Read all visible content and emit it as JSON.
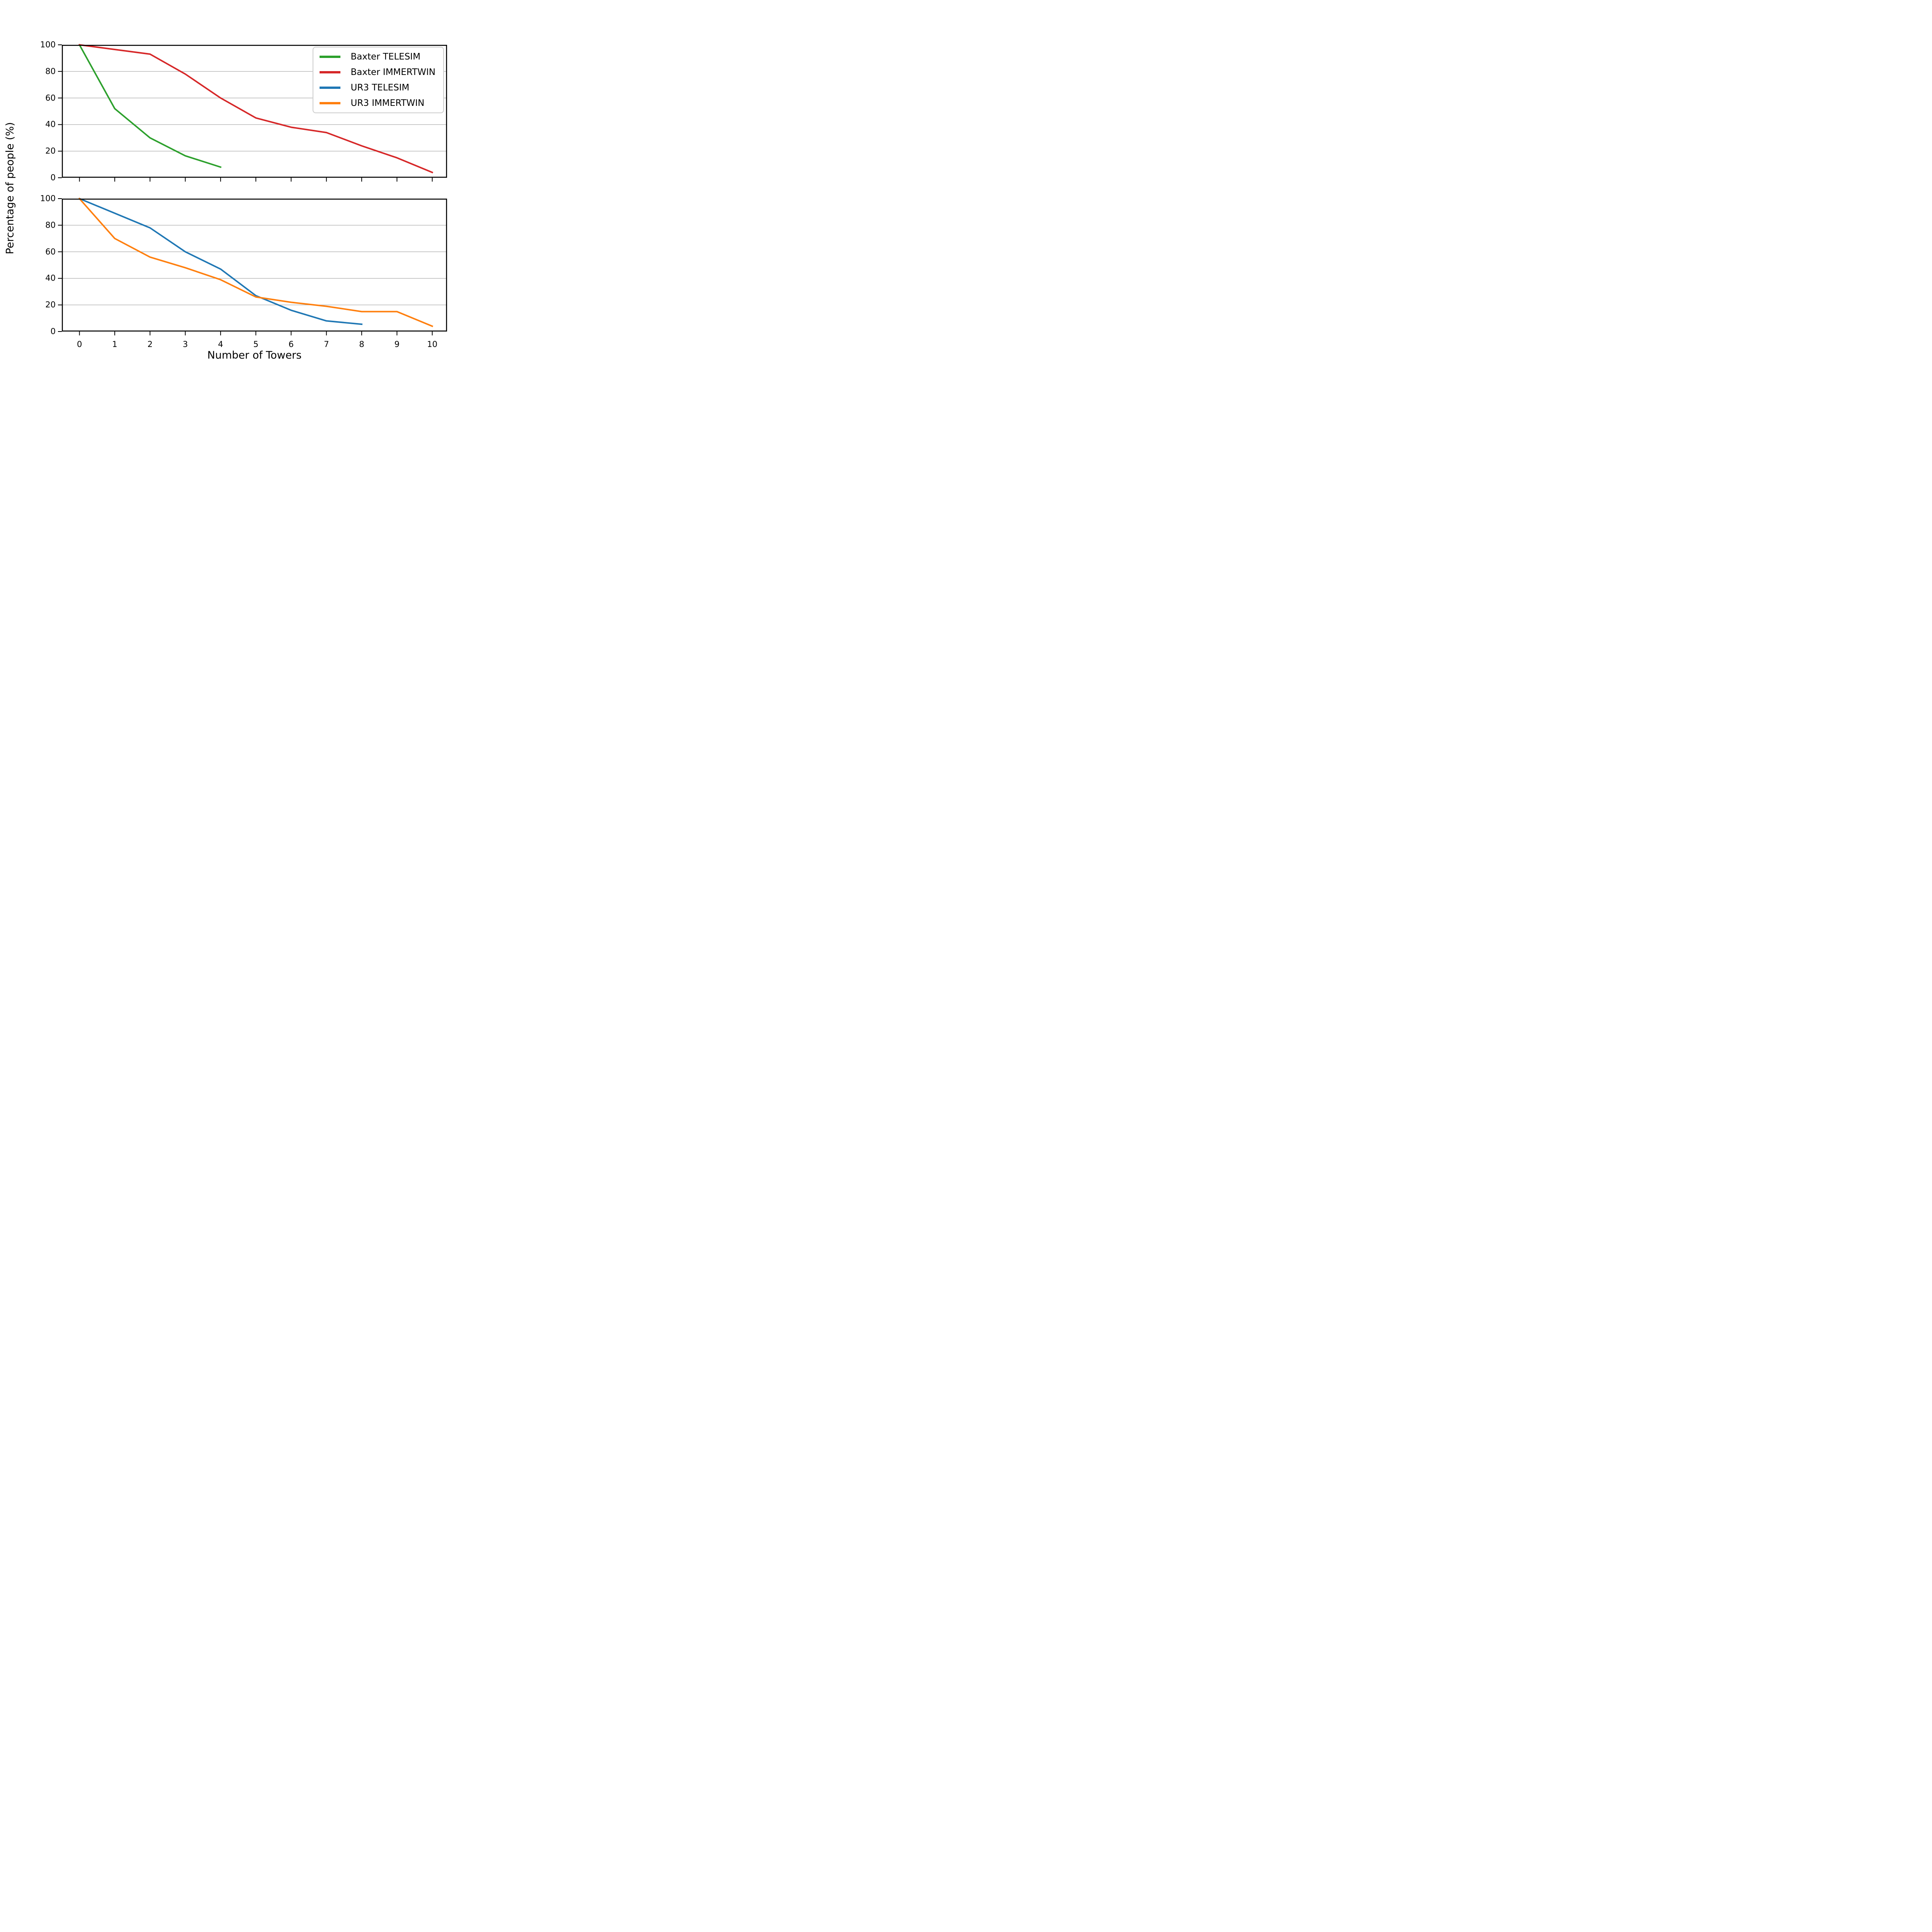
{
  "figure": {
    "background": "#ffffff",
    "xlabel": "Number of Towers",
    "ylabel": "Percentage of people (%)"
  },
  "legend": {
    "position": "upper right",
    "items": [
      {
        "label": "Baxter TELESIM",
        "color": "#2ca02c"
      },
      {
        "label": "Baxter IMMERTWIN",
        "color": "#d62728"
      },
      {
        "label": "UR3 TELESIM",
        "color": "#1f77b4"
      },
      {
        "label": "UR3 IMMERTWIN",
        "color": "#ff7f0e"
      }
    ]
  },
  "chart_data": [
    {
      "id": "baxter-survival",
      "type": "line",
      "title": "",
      "xlabel": "",
      "ylabel": "Percentage of people (%)",
      "xlim": [
        -0.5,
        10.42
      ],
      "ylim": [
        0,
        100
      ],
      "xticks": [
        0,
        1,
        2,
        3,
        4,
        5,
        6,
        7,
        8,
        9,
        10
      ],
      "yticks": [
        0,
        20,
        40,
        60,
        80,
        100
      ],
      "show_xtick_labels": false,
      "grid": true,
      "grid_color": "#b0b0b0",
      "series": [
        {
          "name": "Baxter TELESIM",
          "color": "#2ca02c",
          "x": [
            0,
            1,
            2,
            3,
            4
          ],
          "y": [
            100,
            52,
            30,
            16.5,
            8
          ]
        },
        {
          "name": "Baxter IMMERTWIN",
          "color": "#d62728",
          "x": [
            0,
            1,
            2,
            3,
            4,
            5,
            6,
            7,
            8,
            9,
            10
          ],
          "y": [
            100,
            96.5,
            93,
            78,
            60,
            45,
            38,
            34,
            24,
            15,
            4
          ]
        }
      ]
    },
    {
      "id": "ur3-survival",
      "type": "line",
      "title": "",
      "xlabel": "Number of Towers",
      "ylabel": "Percentage of people (%)",
      "xlim": [
        -0.5,
        10.42
      ],
      "ylim": [
        0,
        100
      ],
      "xticks": [
        0,
        1,
        2,
        3,
        4,
        5,
        6,
        7,
        8,
        9,
        10
      ],
      "yticks": [
        0,
        20,
        40,
        60,
        80,
        100
      ],
      "show_xtick_labels": true,
      "grid": true,
      "grid_color": "#b0b0b0",
      "series": [
        {
          "name": "UR3 TELESIM",
          "color": "#1f77b4",
          "x": [
            0,
            1,
            2,
            3,
            4,
            5,
            6,
            7,
            8
          ],
          "y": [
            100,
            89,
            78,
            60,
            47,
            27,
            16,
            8,
            5.5
          ]
        },
        {
          "name": "UR3 IMMERTWIN",
          "color": "#ff7f0e",
          "x": [
            0,
            1,
            2,
            3,
            4,
            5,
            6,
            7,
            8,
            9,
            10
          ],
          "y": [
            100,
            70,
            56,
            48,
            39,
            26,
            22,
            19,
            15,
            15,
            4
          ]
        }
      ]
    }
  ]
}
